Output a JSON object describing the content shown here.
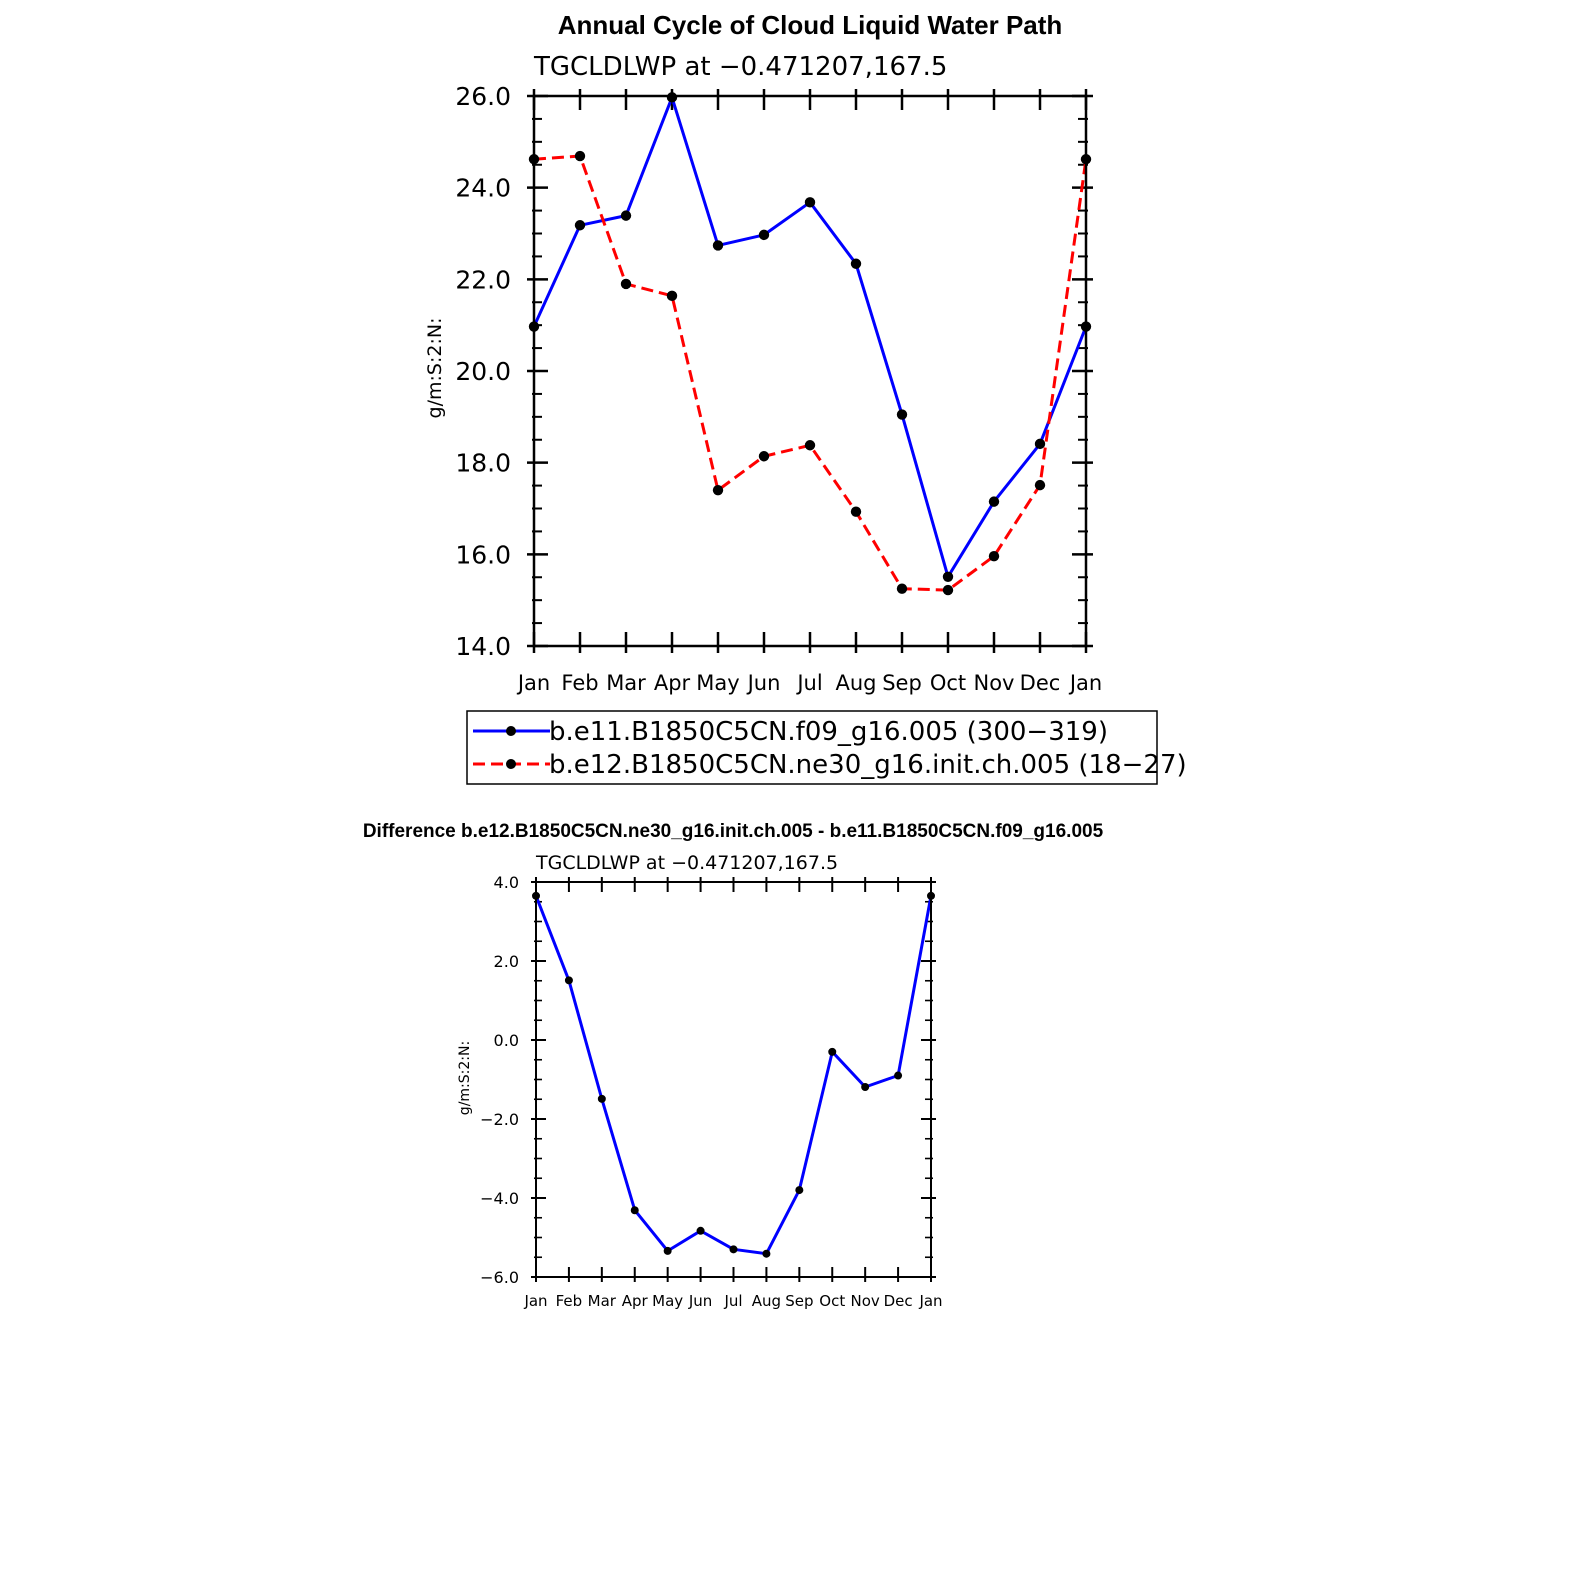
{
  "chart_data": [
    {
      "type": "line",
      "title": "Annual Cycle of Cloud Liquid Water Path",
      "subtitle": "TGCLDLWP at −0.471207,167.5",
      "ylabel": "g/m:S:2:N:",
      "xlabel": "",
      "categories": [
        "Jan",
        "Feb",
        "Mar",
        "Apr",
        "May",
        "Jun",
        "Jul",
        "Aug",
        "Sep",
        "Oct",
        "Nov",
        "Dec",
        "Jan"
      ],
      "ylim": [
        14.0,
        26.0
      ],
      "yticks": [
        "14.0",
        "16.0",
        "18.0",
        "20.0",
        "22.0",
        "24.0",
        "26.0"
      ],
      "series": [
        {
          "name": "b.e11.B1850C5CN.f09_g16.005 (300−319)",
          "color": "#0000ff",
          "dash": "solid",
          "values": [
            20.97,
            23.18,
            23.39,
            25.97,
            22.74,
            22.97,
            23.68,
            22.34,
            19.05,
            15.51,
            17.15,
            18.41,
            20.97
          ]
        },
        {
          "name": "b.e12.B1850C5CN.ne30_g16.init.ch.005 (18−27)",
          "color": "#ff0000",
          "dash": "dashed",
          "values": [
            24.62,
            24.69,
            21.9,
            21.64,
            17.4,
            18.14,
            18.38,
            16.93,
            15.25,
            15.22,
            15.96,
            17.51,
            24.62
          ]
        }
      ]
    },
    {
      "type": "line",
      "title": "Difference b.e12.B1850C5CN.ne30_g16.init.ch.005 - b.e11.B1850C5CN.f09_g16.005",
      "subtitle": "TGCLDLWP at −0.471207,167.5",
      "ylabel": "g/m:S:2:N:",
      "xlabel": "",
      "categories": [
        "Jan",
        "Feb",
        "Mar",
        "Apr",
        "May",
        "Jun",
        "Jul",
        "Aug",
        "Sep",
        "Oct",
        "Nov",
        "Dec",
        "Jan"
      ],
      "ylim": [
        -6.0,
        4.0
      ],
      "yticks": [
        "−6.0",
        "−4.0",
        "−2.0",
        "0.0",
        "2.0",
        "4.0"
      ],
      "series": [
        {
          "name": "difference",
          "color": "#0000ff",
          "dash": "solid",
          "values": [
            3.65,
            1.51,
            -1.49,
            -4.31,
            -5.34,
            -4.83,
            -5.3,
            -5.41,
            -3.8,
            -0.3,
            -1.19,
            -0.9,
            3.65
          ]
        }
      ]
    }
  ]
}
